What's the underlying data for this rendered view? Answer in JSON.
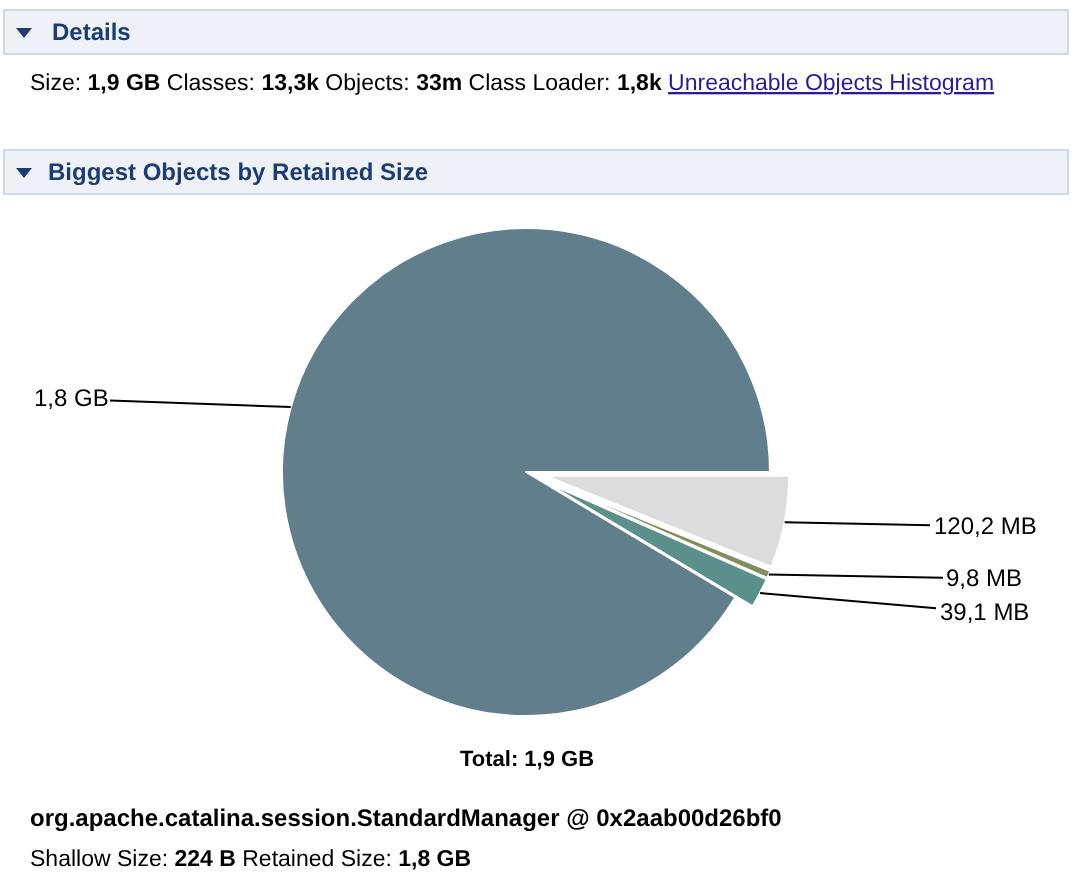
{
  "chart_data": {
    "type": "pie",
    "title": "Biggest Objects by Retained Size",
    "categories": [
      null,
      null,
      null,
      null
    ],
    "values": [
      120.2,
      9.8,
      39.1,
      1800
    ],
    "colors": [
      "#dcdcdc",
      "#7d8f5a",
      "#5b8f8c",
      "#607e8c"
    ],
    "value_labels": [
      "120,2 MB",
      "9,8 MB",
      "39,1 MB",
      null
    ],
    "annotations": [
      "Details",
      "Size:",
      "1,9 GB",
      "Classes:",
      "13,3k",
      "Objects:",
      "33m",
      "Class Loader:",
      "1,8k",
      "Unreachable Objects Histogram",
      "Total: 1,9 GB",
      "org.apache.catalina.session.StandardManager @ 0x2aab00d26bf0",
      "Shallow Size:",
      "224 B",
      "Retained Size:",
      "1,8 GB",
      "1,8 GB"
    ]
  }
}
